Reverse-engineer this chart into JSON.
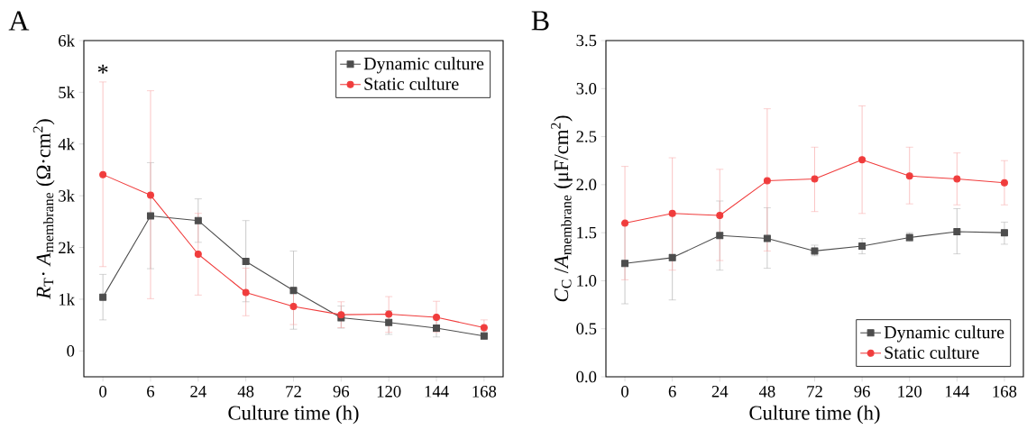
{
  "chart_data": [
    {
      "type": "line",
      "title": "A",
      "xlabel": "Culture time (h)",
      "ylabel": "*R*$_{T}$· *A*$_{membrane}$ (Ω·cm$^{2}$)",
      "categories": [
        "0",
        "6",
        "24",
        "48",
        "72",
        "96",
        "120",
        "144",
        "168"
      ],
      "ylim": [
        -500,
        6000
      ],
      "yticks": [
        0,
        {
          "value": 1000,
          "label": "1k"
        },
        {
          "value": 2000,
          "label": "2k"
        },
        {
          "value": 3000,
          "label": "3k"
        },
        {
          "value": 4000,
          "label": "4k"
        },
        {
          "value": 5000,
          "label": "5k"
        },
        {
          "value": 6000,
          "label": "6k"
        }
      ],
      "series": [
        {
          "name": "Dynamic culture",
          "color": "#4d4d4d",
          "marker": "square",
          "values": [
            1040,
            2610,
            2520,
            1730,
            1170,
            640,
            550,
            440,
            290
          ],
          "errors": [
            [
              600,
              1480
            ],
            [
              1590,
              3640
            ],
            [
              2100,
              2940
            ],
            [
              950,
              2520
            ],
            [
              420,
              1930
            ],
            [
              440,
              870
            ],
            [
              320,
              780
            ],
            [
              270,
              600
            ],
            [
              220,
              370
            ]
          ]
        },
        {
          "name": "Static culture",
          "color": "#f03c3c",
          "marker": "circle",
          "values": [
            3410,
            3010,
            1870,
            1130,
            860,
            700,
            710,
            650,
            450
          ],
          "errors": [
            [
              1630,
              5200
            ],
            [
              1010,
              5030
            ],
            [
              1080,
              2660
            ],
            [
              680,
              1600
            ],
            [
              510,
              1210
            ],
            [
              450,
              950
            ],
            [
              360,
              1050
            ],
            [
              360,
              960
            ],
            150
          ]
        }
      ],
      "annotations": [
        "*"
      ],
      "legend": "top right",
      "grid": false,
      "line_style": "solid"
    },
    {
      "type": "line",
      "title": "B",
      "xlabel": "Culture time (h)",
      "ylabel": "*C*$_{C}$ /*A*$_{membrane}$ (μF/cm$^{2}$)",
      "categories": [
        "0",
        "6",
        "24",
        "48",
        "72",
        "96",
        "120",
        "144",
        "168"
      ],
      "ylim": [
        0,
        3.5
      ],
      "yticks": [
        {
          "value": 0,
          "label": "0.0"
        },
        {
          "value": 0.5,
          "label": "0.5"
        },
        {
          "value": 1,
          "label": "1.0"
        },
        {
          "value": 1.5,
          "label": "1.5"
        },
        {
          "value": 2,
          "label": "2.0"
        },
        {
          "value": 2.5,
          "label": "2.5"
        },
        {
          "value": 3,
          "label": "3.0"
        },
        {
          "value": 3.5,
          "label": "3.5"
        }
      ],
      "series": [
        {
          "name": "Dynamic culture",
          "color": "#4d4d4d",
          "marker": "square",
          "values": [
            1.18,
            1.24,
            1.47,
            1.44,
            1.31,
            1.36,
            1.45,
            1.51,
            1.5
          ],
          "errors": [
            [
              0.76,
              1.6
            ],
            [
              0.8,
              1.68
            ],
            [
              1.11,
              1.83
            ],
            [
              1.13,
              1.76
            ],
            [
              1.26,
              1.37
            ],
            [
              1.28,
              1.44
            ],
            [
              1.41,
              1.5
            ],
            [
              1.28,
              1.75
            ],
            [
              1.38,
              1.61
            ]
          ]
        },
        {
          "name": "Static culture",
          "color": "#f03c3c",
          "marker": "circle",
          "values": [
            1.6,
            1.7,
            1.68,
            2.04,
            2.06,
            2.26,
            2.09,
            2.06,
            2.02
          ],
          "errors": [
            [
              1.01,
              2.19
            ],
            [
              1.11,
              2.28
            ],
            [
              1.21,
              2.16
            ],
            [
              1.31,
              2.79
            ],
            [
              1.72,
              2.39
            ],
            [
              1.7,
              2.82
            ],
            [
              1.8,
              2.39
            ],
            [
              1.79,
              2.33
            ],
            [
              1.79,
              2.25
            ]
          ]
        }
      ],
      "legend": "bottom right",
      "grid": false,
      "line_style": "solid"
    }
  ]
}
